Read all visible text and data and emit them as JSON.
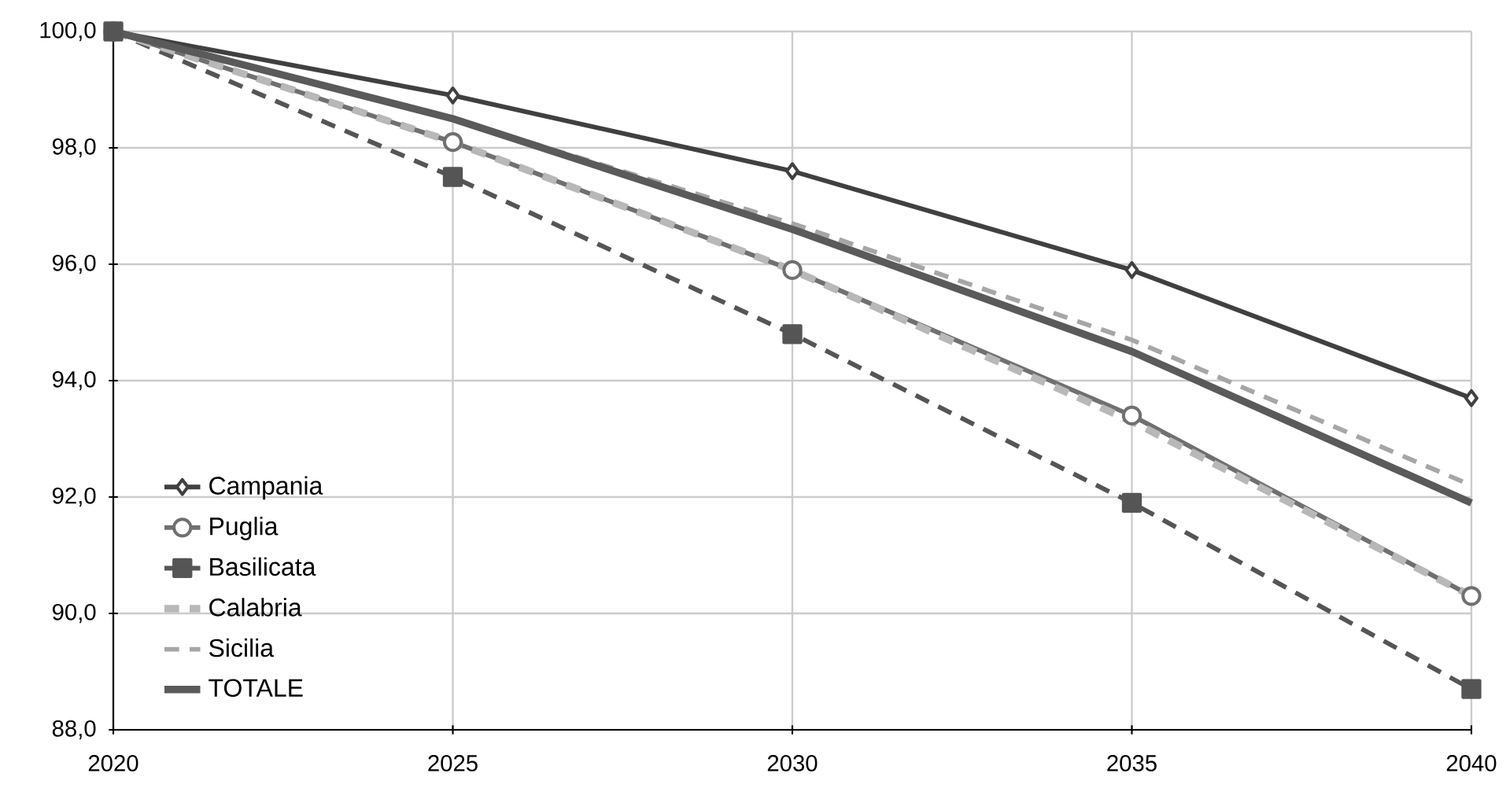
{
  "chart_data": {
    "type": "line",
    "x": [
      2020,
      2025,
      2030,
      2035,
      2040
    ],
    "series": [
      {
        "name": "Campania",
        "color": "#404040",
        "marker": "diamond",
        "line_style": "solid",
        "values": [
          100.0,
          98.9,
          97.6,
          95.9,
          93.7
        ]
      },
      {
        "name": "Puglia",
        "color": "#707070",
        "marker": "circle",
        "line_style": "solid",
        "values": [
          100.0,
          98.1,
          95.9,
          93.4,
          90.3
        ]
      },
      {
        "name": "Basilicata",
        "color": "#555555",
        "marker": "square",
        "line_style": "dashed",
        "values": [
          100.0,
          97.5,
          94.8,
          91.9,
          88.7
        ]
      },
      {
        "name": "Calabria",
        "color": "#b8b8b8",
        "marker": "none",
        "line_style": "dashed",
        "values": [
          100.0,
          98.1,
          95.9,
          93.3,
          90.3
        ]
      },
      {
        "name": "Sicilia",
        "color": "#a6a6a6",
        "marker": "none",
        "line_style": "dashed",
        "values": [
          100.0,
          98.5,
          96.7,
          94.7,
          92.2
        ]
      },
      {
        "name": "TOTALE",
        "color": "#5a5a5a",
        "marker": "none",
        "line_style": "solid",
        "values": [
          100.0,
          98.5,
          96.6,
          94.5,
          91.9
        ]
      }
    ],
    "xlim": [
      2020,
      2040
    ],
    "xticks": [
      2020,
      2025,
      2030,
      2035,
      2040
    ],
    "ylim": [
      88,
      100
    ],
    "yticks": [
      {
        "value": 88,
        "label": "88,0"
      },
      {
        "value": 90,
        "label": "90,0"
      },
      {
        "value": 92,
        "label": "92,0"
      },
      {
        "value": 94,
        "label": "94,0"
      },
      {
        "value": 96,
        "label": "96,0"
      },
      {
        "value": 98,
        "label": "98,0"
      },
      {
        "value": 100,
        "label": "100,0"
      }
    ],
    "grid": true,
    "legend": "bottom left"
  }
}
